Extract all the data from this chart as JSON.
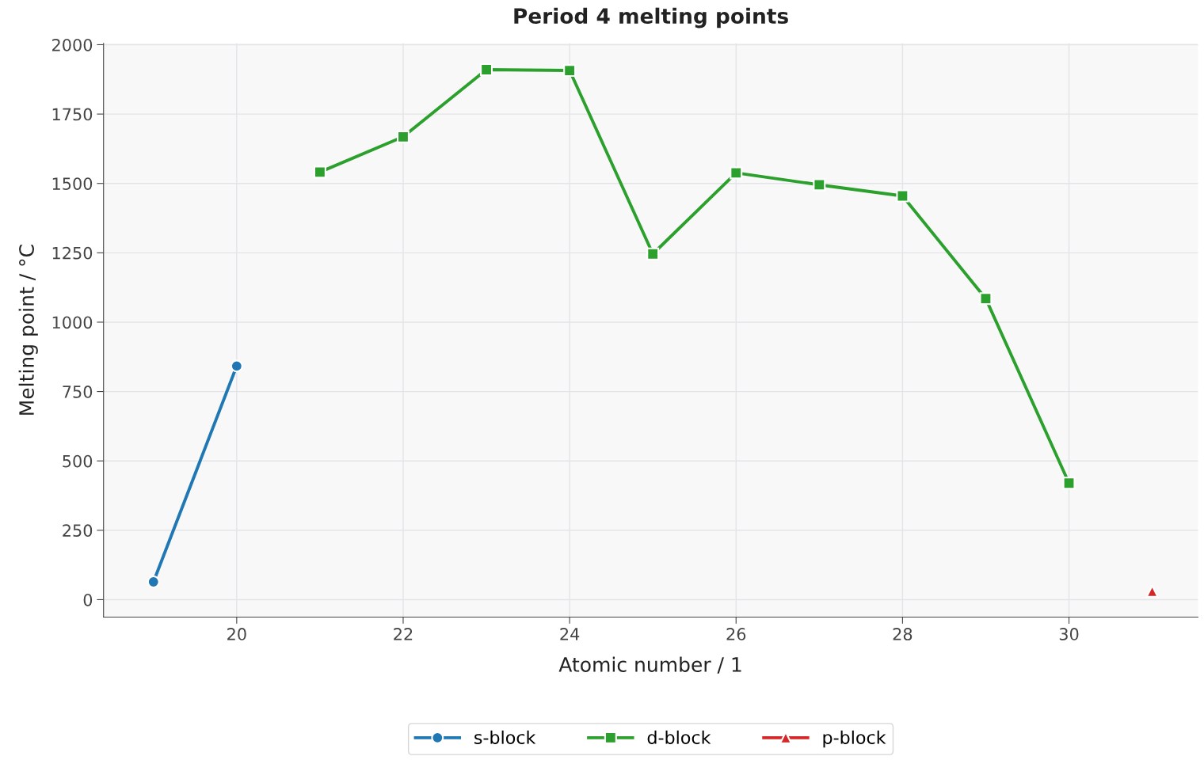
{
  "chart_data": {
    "type": "line",
    "title": "Period 4 melting points",
    "xlabel": "Atomic number / 1",
    "ylabel": "Melting point / °C",
    "xlim": [
      18.4,
      31.55
    ],
    "ylim": [
      -63,
      2005
    ],
    "xticks": [
      20,
      22,
      24,
      26,
      28,
      30
    ],
    "yticks": [
      0,
      250,
      500,
      750,
      1000,
      1250,
      1500,
      1750,
      2000
    ],
    "grid": true,
    "legend": "bottom",
    "series": [
      {
        "name": "s-block",
        "color": "#1f77b4",
        "marker": "circle",
        "x": [
          19,
          20
        ],
        "values": [
          64,
          842
        ]
      },
      {
        "name": "d-block",
        "color": "#2ca02c",
        "marker": "square",
        "x": [
          21,
          22,
          23,
          24,
          25,
          26,
          27,
          28,
          29,
          30
        ],
        "values": [
          1541,
          1668,
          1910,
          1907,
          1246,
          1538,
          1495,
          1455,
          1085,
          420
        ]
      },
      {
        "name": "p-block",
        "color": "#d62728",
        "marker": "triangle",
        "x": [
          31
        ],
        "values": [
          30
        ]
      }
    ]
  }
}
